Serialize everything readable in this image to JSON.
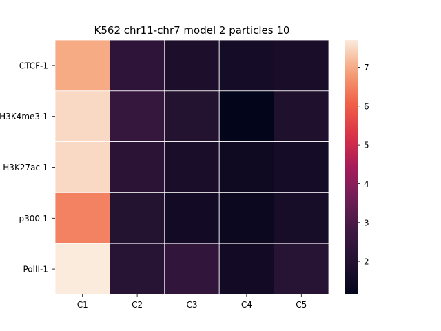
{
  "chart_data": {
    "type": "heatmap",
    "title": "K562 chr11-chr7 model 2 particles 10",
    "xlabel": "",
    "ylabel": "",
    "x_categories": [
      "C1",
      "C2",
      "C3",
      "C4",
      "C5"
    ],
    "y_categories": [
      "CTCF-1",
      "H3K4me3-1",
      "H3K27ac-1",
      "p300-1",
      "PolII-1"
    ],
    "values": [
      [
        7.0,
        2.3,
        1.8,
        1.6,
        1.7
      ],
      [
        7.5,
        2.5,
        2.0,
        1.15,
        1.85
      ],
      [
        7.5,
        2.2,
        1.7,
        1.45,
        1.6
      ],
      [
        6.5,
        2.0,
        1.55,
        1.35,
        1.65
      ],
      [
        7.7,
        2.1,
        2.4,
        1.55,
        2.1
      ]
    ],
    "colorbar": {
      "min": 1.15,
      "max": 7.7,
      "ticks": [
        2,
        3,
        4,
        5,
        6,
        7
      ],
      "colormap": "rocket"
    },
    "grid": false,
    "cell_lines": true
  }
}
